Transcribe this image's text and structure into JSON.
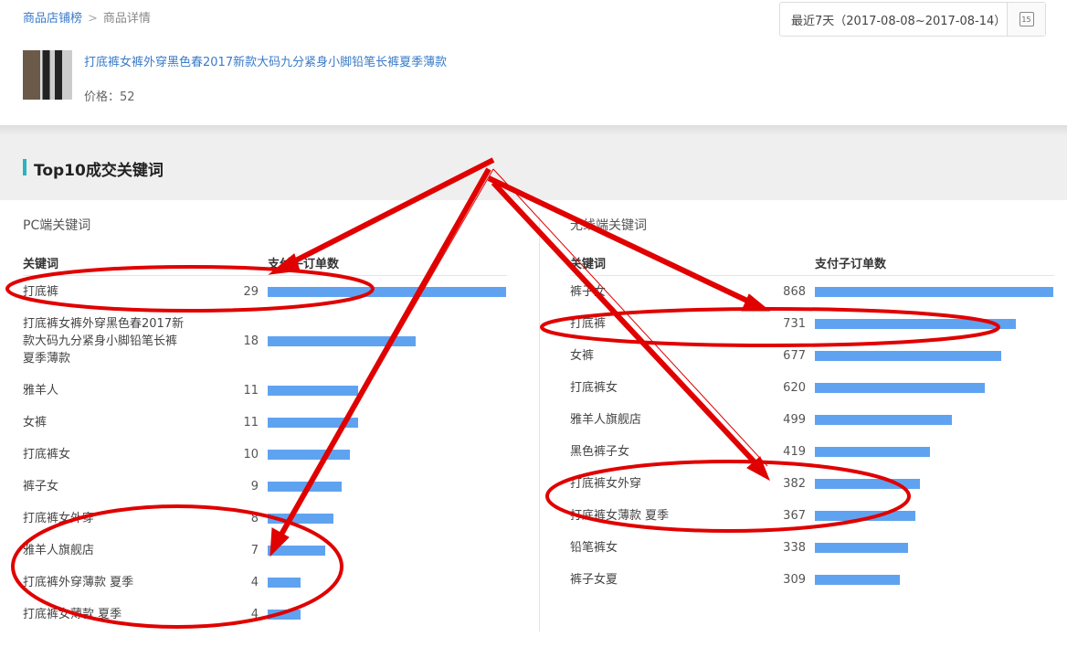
{
  "breadcrumb": {
    "parent": "商品店铺榜",
    "separator": ">",
    "current": "商品详情"
  },
  "date_range": {
    "label": "最近7天（2017-08-08~2017-08-14）",
    "calendar_day": "15"
  },
  "product": {
    "title": "打底裤女裤外穿黑色春2017新款大码九分紧身小脚铅笔长裤夏季薄款",
    "price_label": "价格：52"
  },
  "section": {
    "title": "Top10成交关键词"
  },
  "accent": "#2bb3c0",
  "bar_color": "#5fa3f0",
  "annotation_color": "#e00000",
  "pc": {
    "title": "PC端关键词",
    "col_keyword": "关键词",
    "col_orders": "支付子订单数",
    "max": 29,
    "rows": [
      {
        "keyword": "打底裤",
        "orders": 29
      },
      {
        "keyword": "打底裤女裤外穿黑色春2017新款大码九分紧身小脚铅笔长裤夏季薄款",
        "orders": 18
      },
      {
        "keyword": "雅羊人",
        "orders": 11
      },
      {
        "keyword": "女裤",
        "orders": 11
      },
      {
        "keyword": "打底裤女",
        "orders": 10
      },
      {
        "keyword": "裤子女",
        "orders": 9
      },
      {
        "keyword": "打底裤女外穿",
        "orders": 8
      },
      {
        "keyword": "雅羊人旗舰店",
        "orders": 7
      },
      {
        "keyword": "打底裤外穿薄款 夏季",
        "orders": 4
      },
      {
        "keyword": "打底裤女薄款 夏季",
        "orders": 4
      }
    ]
  },
  "mobile": {
    "title": "无线端关键词",
    "col_keyword": "关键词",
    "col_orders": "支付子订单数",
    "max": 868,
    "rows": [
      {
        "keyword": "裤子女",
        "orders": 868
      },
      {
        "keyword": "打底裤",
        "orders": 731
      },
      {
        "keyword": "女裤",
        "orders": 677
      },
      {
        "keyword": "打底裤女",
        "orders": 620
      },
      {
        "keyword": "雅羊人旗舰店",
        "orders": 499
      },
      {
        "keyword": "黑色裤子女",
        "orders": 419
      },
      {
        "keyword": "打底裤女外穿",
        "orders": 382
      },
      {
        "keyword": "打底裤女薄款 夏季",
        "orders": 367
      },
      {
        "keyword": "铅笔裤女",
        "orders": 338
      },
      {
        "keyword": "裤子女夏",
        "orders": 309
      }
    ]
  }
}
